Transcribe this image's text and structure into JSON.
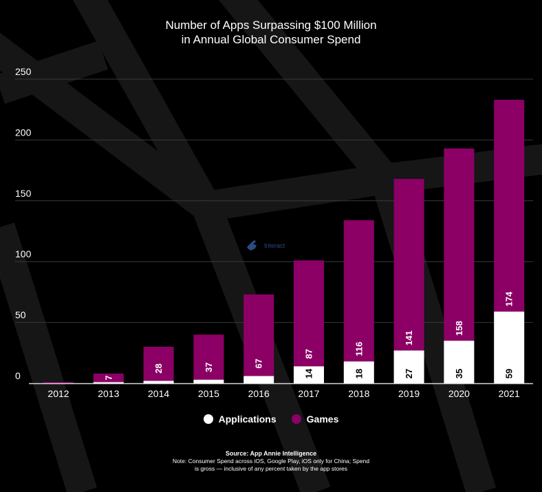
{
  "title_line1": "Number of Apps Surpassing $100 Million",
  "title_line2": "in Annual Global Consumer Spend",
  "interact_label": "Interact",
  "legend": [
    {
      "label": "Applications",
      "color": "#ffffff"
    },
    {
      "label": "Games",
      "color": "#8c0066"
    }
  ],
  "source": "Source: App Annie Intelligence",
  "note_line1": "Note: Consumer Spend across iOS, Google Play, iOS only for China; Spend",
  "note_line2": "is gross — inclusive of any percent taken by the app stores",
  "chart_data": {
    "type": "bar",
    "stacked": true,
    "categories": [
      "2012",
      "2013",
      "2014",
      "2015",
      "2016",
      "2017",
      "2018",
      "2019",
      "2020",
      "2021"
    ],
    "series": [
      {
        "name": "Applications",
        "color": "#ffffff",
        "values": [
          0,
          1,
          2,
          3,
          6,
          14,
          18,
          27,
          35,
          59
        ],
        "labels": [
          "",
          "",
          "",
          "",
          "",
          "14",
          "18",
          "27",
          "35",
          "59"
        ]
      },
      {
        "name": "Games",
        "color": "#8c0066",
        "values": [
          1,
          7,
          28,
          37,
          67,
          87,
          116,
          141,
          158,
          174
        ],
        "labels": [
          "",
          "7",
          "28",
          "37",
          "67",
          "87",
          "116",
          "141",
          "158",
          "174"
        ]
      }
    ],
    "yticks": [
      0,
      50,
      100,
      150,
      200,
      250
    ],
    "ylim": [
      0,
      250
    ],
    "grid": true
  }
}
